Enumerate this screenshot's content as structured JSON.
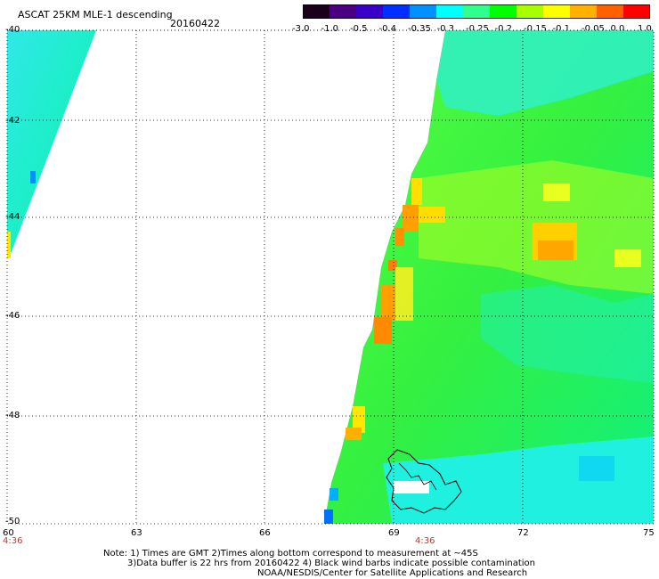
{
  "header": {
    "title": "ASCAT 25KM MLE-1 descending",
    "date": "20160422"
  },
  "colorbar": {
    "labels": [
      "-3.0",
      "-1.0",
      "-0.5",
      "-0.4",
      "-0.35",
      "-0.3",
      "-0.25",
      "-0.2",
      "-0.15",
      "-0.1",
      "-0.05",
      "0.0",
      "1.0"
    ],
    "colors": [
      "#1a001a",
      "#4b0082",
      "#3a00c8",
      "#0030ff",
      "#0090ff",
      "#00ffff",
      "#30ff90",
      "#00ff00",
      "#a8ff00",
      "#ffff00",
      "#ffb000",
      "#ff6000",
      "#ff0000"
    ]
  },
  "map": {
    "lat_labels": [
      "-40",
      "-42",
      "-44",
      "-46",
      "-48",
      "-50"
    ],
    "lon_labels": [
      "60",
      "63",
      "66",
      "69",
      "72",
      "75"
    ],
    "time_labels": [
      "4:36",
      "4:36"
    ]
  },
  "notes": [
    "Note: 1) Times are GMT 2)Times along bottom correspond to measurement at ~45S",
    "3)Data buffer is 22 hrs from 20160422 4) Black wind barbs indicate possible contamination",
    "NOAA/NESDIS/Center for Satellite Applications and Research"
  ]
}
